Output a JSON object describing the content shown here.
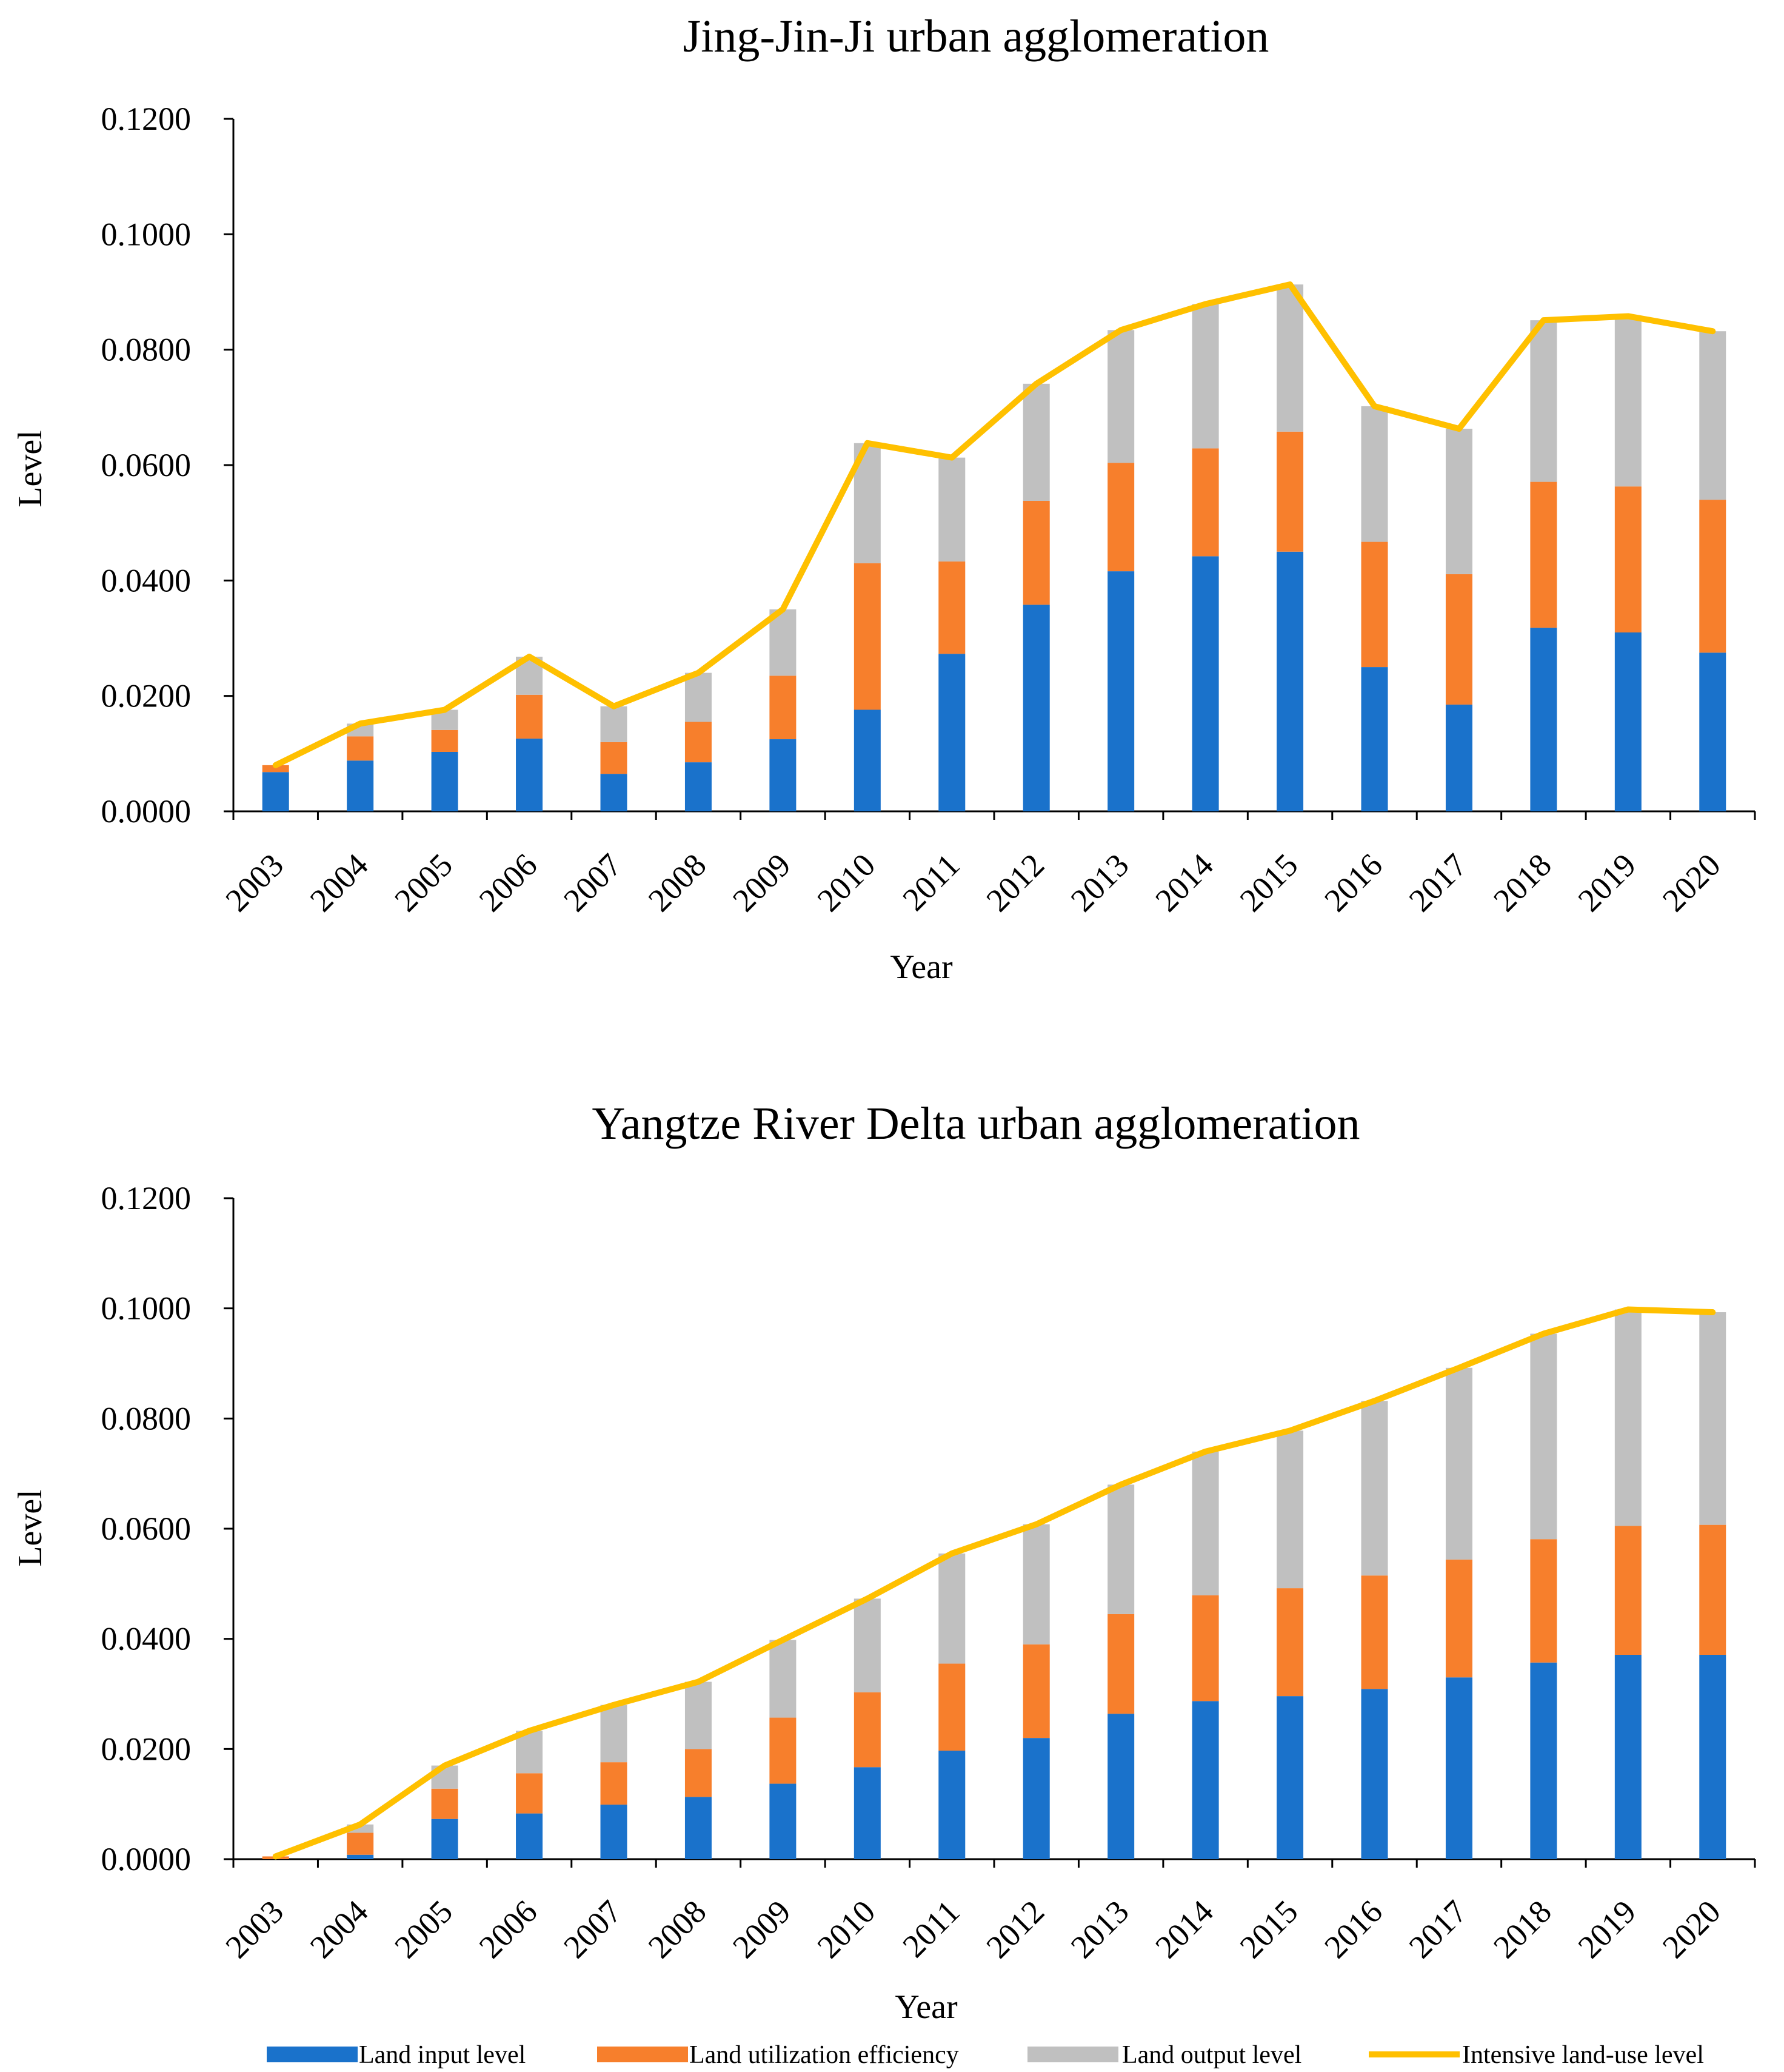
{
  "chart_data": [
    {
      "type": "bar",
      "stacked": true,
      "title": "Jing-Jin-Ji urban agglomeration",
      "xlabel": "Year",
      "ylabel": "Level",
      "ylim": [
        0,
        0.12
      ],
      "yticks": [
        "0.0000",
        "0.0200",
        "0.0400",
        "0.0600",
        "0.0800",
        "0.1000",
        "0.1200"
      ],
      "categories": [
        "2003",
        "2004",
        "2005",
        "2006",
        "2007",
        "2008",
        "2009",
        "2010",
        "2011",
        "2012",
        "2013",
        "2014",
        "2015",
        "2016",
        "2017",
        "2018",
        "2019",
        "2020"
      ],
      "series": [
        {
          "name": "Land input level",
          "type": "bar",
          "color": "#1A72CB",
          "values": [
            0.0068,
            0.0088,
            0.0103,
            0.0126,
            0.0065,
            0.0085,
            0.0125,
            0.0176,
            0.0273,
            0.0358,
            0.0416,
            0.0442,
            0.045,
            0.025,
            0.0185,
            0.0318,
            0.031,
            0.0275
          ]
        },
        {
          "name": "Land utilization efficiency",
          "type": "bar",
          "color": "#F77F2C",
          "values": [
            0.0012,
            0.0042,
            0.0038,
            0.0076,
            0.0055,
            0.007,
            0.011,
            0.0254,
            0.016,
            0.018,
            0.0188,
            0.0187,
            0.0208,
            0.0217,
            0.0226,
            0.0253,
            0.0253,
            0.0265
          ]
        },
        {
          "name": "Land output level",
          "type": "bar",
          "color": "#C0C0C0",
          "values": [
            0.0,
            0.0022,
            0.0035,
            0.0066,
            0.0062,
            0.0085,
            0.0115,
            0.0208,
            0.018,
            0.0203,
            0.023,
            0.025,
            0.0255,
            0.0235,
            0.0252,
            0.028,
            0.0295,
            0.0292
          ]
        },
        {
          "name": "Intensive land-use level",
          "type": "line",
          "color": "#FFC000",
          "values": [
            0.008,
            0.0152,
            0.0176,
            0.0268,
            0.0182,
            0.024,
            0.035,
            0.0638,
            0.0613,
            0.0741,
            0.0834,
            0.0879,
            0.0913,
            0.0702,
            0.0663,
            0.0851,
            0.0858,
            0.0832
          ]
        }
      ]
    },
    {
      "type": "bar",
      "stacked": true,
      "title": "Yangtze River Delta urban agglomeration",
      "xlabel": "Year",
      "ylabel": "Level",
      "ylim": [
        0,
        0.12
      ],
      "yticks": [
        "0.0000",
        "0.0200",
        "0.0400",
        "0.0600",
        "0.0800",
        "0.1000",
        "0.1200"
      ],
      "categories": [
        "2003",
        "2004",
        "2005",
        "2006",
        "2007",
        "2008",
        "2009",
        "2010",
        "2011",
        "2012",
        "2013",
        "2014",
        "2015",
        "2016",
        "2017",
        "2018",
        "2019",
        "2020"
      ],
      "series": [
        {
          "name": "Land input level",
          "type": "bar",
          "color": "#1A72CB",
          "values": [
            0.0,
            0.0008,
            0.0073,
            0.0083,
            0.0099,
            0.0113,
            0.0137,
            0.0167,
            0.0197,
            0.022,
            0.0264,
            0.0287,
            0.0296,
            0.0309,
            0.033,
            0.0357,
            0.0371,
            0.0371
          ]
        },
        {
          "name": "Land utilization efficiency",
          "type": "bar",
          "color": "#F77F2C",
          "values": [
            0.0005,
            0.004,
            0.0055,
            0.0073,
            0.0077,
            0.0087,
            0.012,
            0.0136,
            0.0158,
            0.017,
            0.0181,
            0.0192,
            0.0196,
            0.0206,
            0.0214,
            0.0224,
            0.0234,
            0.0236
          ]
        },
        {
          "name": "Land output level",
          "type": "bar",
          "color": "#C0C0C0",
          "values": [
            0.0,
            0.0015,
            0.0042,
            0.0077,
            0.0104,
            0.0122,
            0.0141,
            0.017,
            0.02,
            0.0218,
            0.0235,
            0.0261,
            0.0286,
            0.0317,
            0.0348,
            0.0373,
            0.0393,
            0.0386
          ]
        },
        {
          "name": "Intensive land-use level",
          "type": "line",
          "color": "#FFC000",
          "values": [
            0.0005,
            0.0063,
            0.017,
            0.0233,
            0.028,
            0.0322,
            0.0398,
            0.0473,
            0.0555,
            0.0608,
            0.068,
            0.074,
            0.0778,
            0.0832,
            0.0892,
            0.0954,
            0.0998,
            0.0993
          ]
        }
      ]
    }
  ],
  "legend": [
    {
      "label": "Land input level",
      "color": "#1A72CB",
      "kind": "bar"
    },
    {
      "label": "Land utilization efficiency",
      "color": "#F77F2C",
      "kind": "bar"
    },
    {
      "label": "Land output level",
      "color": "#C0C0C0",
      "kind": "bar"
    },
    {
      "label": "Intensive land-use level",
      "color": "#FFC000",
      "kind": "line"
    }
  ]
}
